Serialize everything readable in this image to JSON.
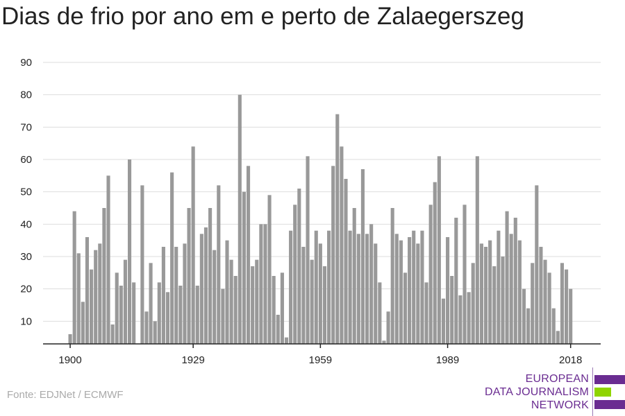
{
  "title": "Dias de frio por ano em e perto de Zalaegerszeg",
  "source": "Fonte: EDJNet / ECMWF",
  "logo": {
    "line1": "EUROPEAN",
    "line2": "DATA JOURNALISM",
    "line3": "NETWORK"
  },
  "colors": {
    "bar": "#999999",
    "grid": "#dddddd",
    "axis": "#222222",
    "logo_purple": "#6a2c91",
    "logo_green": "#8fd400"
  },
  "chart_data": {
    "type": "bar",
    "title": "Dias de frio por ano em e perto de Zalaegerszeg",
    "xlabel": "",
    "ylabel": "",
    "x_ticks": [
      "1900",
      "1929",
      "1959",
      "1989",
      "2018"
    ],
    "y_ticks": [
      10,
      20,
      30,
      40,
      50,
      60,
      70,
      80,
      90
    ],
    "ylim": [
      3,
      90
    ],
    "grid": "horizontal",
    "categories": [
      1900,
      1901,
      1902,
      1903,
      1904,
      1905,
      1906,
      1907,
      1908,
      1909,
      1910,
      1911,
      1912,
      1913,
      1914,
      1915,
      1916,
      1917,
      1918,
      1919,
      1920,
      1921,
      1922,
      1923,
      1924,
      1925,
      1926,
      1927,
      1928,
      1929,
      1930,
      1931,
      1932,
      1933,
      1934,
      1935,
      1936,
      1937,
      1938,
      1939,
      1940,
      1941,
      1942,
      1943,
      1944,
      1945,
      1946,
      1947,
      1948,
      1949,
      1950,
      1951,
      1952,
      1953,
      1954,
      1955,
      1956,
      1957,
      1958,
      1959,
      1960,
      1961,
      1962,
      1963,
      1964,
      1965,
      1966,
      1967,
      1968,
      1969,
      1970,
      1971,
      1972,
      1973,
      1974,
      1975,
      1976,
      1977,
      1978,
      1979,
      1980,
      1981,
      1982,
      1983,
      1984,
      1985,
      1986,
      1987,
      1988,
      1989,
      1990,
      1991,
      1992,
      1993,
      1994,
      1995,
      1996,
      1997,
      1998,
      1999,
      2000,
      2001,
      2002,
      2003,
      2004,
      2005,
      2006,
      2007,
      2008,
      2009,
      2010,
      2011,
      2012,
      2013,
      2014,
      2015,
      2016,
      2017,
      2018
    ],
    "values": [
      6,
      44,
      31,
      16,
      36,
      26,
      32,
      34,
      45,
      55,
      9,
      25,
      21,
      29,
      60,
      22,
      3,
      52,
      13,
      28,
      10,
      22,
      33,
      19,
      56,
      33,
      21,
      34,
      45,
      64,
      21,
      37,
      39,
      45,
      32,
      52,
      20,
      35,
      29,
      24,
      80,
      50,
      58,
      27,
      29,
      40,
      40,
      49,
      24,
      12,
      25,
      5,
      38,
      46,
      51,
      33,
      61,
      29,
      38,
      34,
      27,
      38,
      58,
      74,
      64,
      54,
      38,
      45,
      37,
      57,
      37,
      40,
      34,
      22,
      4,
      13,
      45,
      37,
      35,
      25,
      36,
      38,
      34,
      38,
      22,
      46,
      53,
      61,
      17,
      36,
      24,
      42,
      18,
      46,
      19,
      28,
      61,
      34,
      33,
      35,
      27,
      38,
      30,
      44,
      37,
      42,
      35,
      20,
      14,
      28,
      52,
      33,
      29,
      25,
      14,
      7,
      28,
      26,
      20
    ]
  }
}
